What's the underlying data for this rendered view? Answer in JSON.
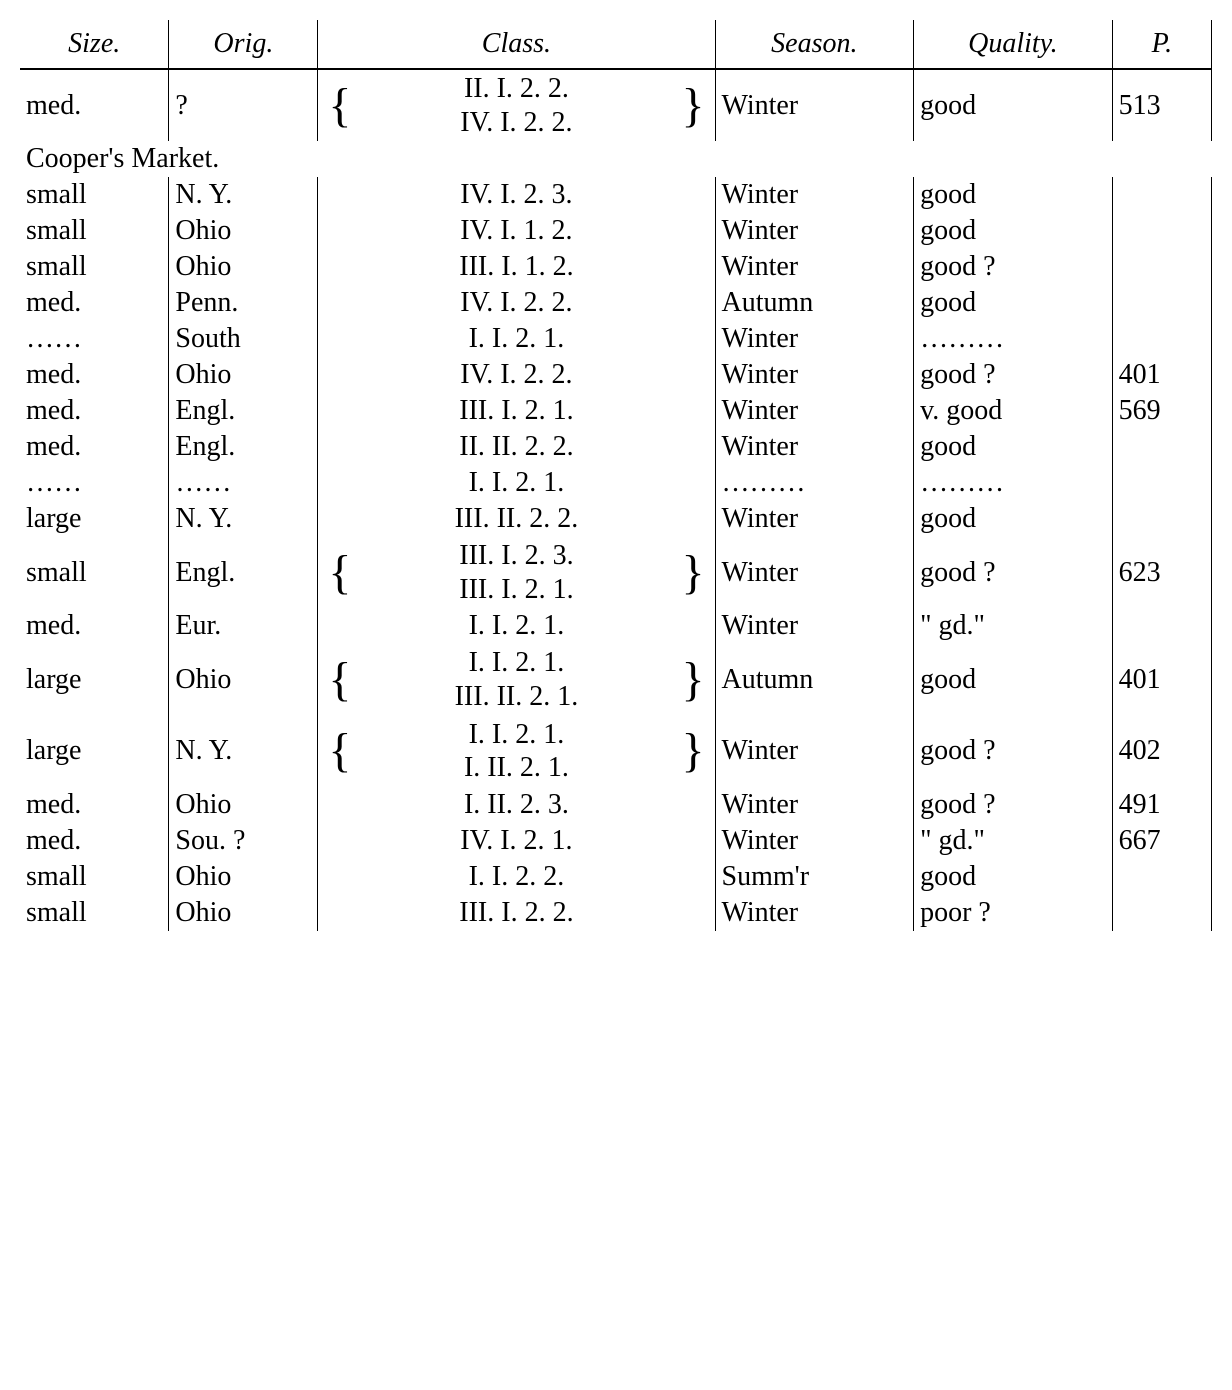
{
  "headers": {
    "size": "Size.",
    "orig": "Orig.",
    "class": "Class.",
    "season": "Season.",
    "quality": "Quality.",
    "p": "P."
  },
  "section_header": "Cooper's Market.",
  "rows": [
    {
      "size": "med.",
      "orig": "?",
      "class_multi": [
        "II.  I. 2. 2.",
        "IV.  I. 2. 2."
      ],
      "season": "Winter",
      "quality": "good",
      "p": "513"
    },
    {
      "size": "small",
      "orig": "N. Y.",
      "class": "IV.  I. 2. 3.",
      "season": "Winter",
      "quality": "good",
      "p": ""
    },
    {
      "size": "small",
      "orig": "Ohio",
      "class": "IV.  I. 1. 2.",
      "season": "Winter",
      "quality": "good",
      "p": ""
    },
    {
      "size": "small",
      "orig": "Ohio",
      "class": "III.  I. 1. 2.",
      "season": "Winter",
      "quality": "good ?",
      "p": ""
    },
    {
      "size": "med.",
      "orig": "Penn.",
      "class": "IV.  I. 2. 2.",
      "season": "Autumn",
      "quality": "good",
      "p": ""
    },
    {
      "size": "……",
      "orig": "South",
      "class": "I.  I. 2. 1.",
      "season": "Winter",
      "quality": "………",
      "p": ""
    },
    {
      "size": "med.",
      "orig": "Ohio",
      "class": "IV.  I. 2. 2.",
      "season": "Winter",
      "quality": "good ?",
      "p": "401"
    },
    {
      "size": "med.",
      "orig": "Engl.",
      "class": "III.  I. 2. 1.",
      "season": "Winter",
      "quality": "v. good",
      "p": "569"
    },
    {
      "size": "med.",
      "orig": "Engl.",
      "class": "II. II. 2. 2.",
      "season": "Winter",
      "quality": "good",
      "p": ""
    },
    {
      "size": "……",
      "orig": "……",
      "class": "I.  I. 2. 1.",
      "season": "………",
      "quality": "………",
      "p": ""
    },
    {
      "size": "large",
      "orig": "N. Y.",
      "class": "III. II. 2. 2.",
      "season": "Winter",
      "quality": "good",
      "p": ""
    },
    {
      "size": "small",
      "orig": "Engl.",
      "class_multi": [
        "III.  I. 2. 3.",
        "III.  I. 2. 1."
      ],
      "season": "Winter",
      "quality": "good ?",
      "p": "623"
    },
    {
      "size": "med.",
      "orig": "Eur.",
      "class": "I.  I. 2. 1.",
      "season": "Winter",
      "quality": "\" gd.\"",
      "p": ""
    },
    {
      "size": "large",
      "orig": "Ohio",
      "class_multi": [
        "I.  I. 2. 1.",
        "III. II. 2. 1."
      ],
      "season": "Autumn",
      "quality": "good",
      "p": "401"
    },
    {
      "size": "large",
      "orig": "N. Y.",
      "class_multi": [
        "I.  I. 2. 1.",
        "I. II. 2. 1."
      ],
      "season": "Winter",
      "quality": "good ?",
      "p": "402"
    },
    {
      "size": "med.",
      "orig": "Ohio",
      "class": "I. II. 2. 3.",
      "season": "Winter",
      "quality": "good ?",
      "p": "491"
    },
    {
      "size": "med.",
      "orig": "Sou. ?",
      "class": "IV.  I. 2. 1.",
      "season": "Winter",
      "quality": "\" gd.\"",
      "p": "667"
    },
    {
      "size": "small",
      "orig": "Ohio",
      "class": "I.  I. 2. 2.",
      "season": "Summ'r",
      "quality": "good",
      "p": ""
    },
    {
      "size": "small",
      "orig": "Ohio",
      "class": "III.  I. 2. 2.",
      "season": "Winter",
      "quality": "poor ?",
      "p": ""
    }
  ],
  "styling": {
    "font_family": "Georgia, Times New Roman, serif",
    "font_size": 28,
    "text_color": "#000000",
    "background_color": "#ffffff",
    "border_color": "#000000",
    "header_style": "italic"
  }
}
